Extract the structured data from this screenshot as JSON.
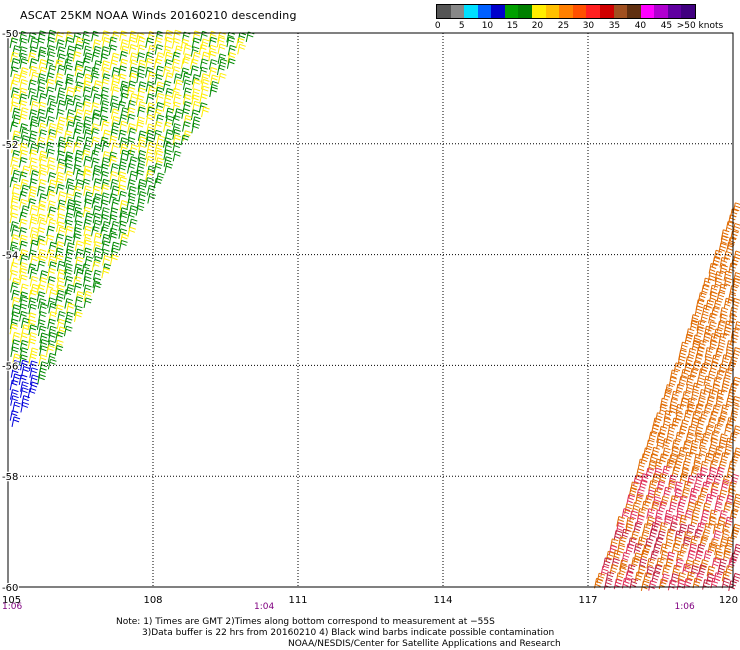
{
  "title": "ASCAT 25KM NOAA Winds 20160210 descending",
  "legend": {
    "colors": [
      "#555555",
      "#888888",
      "#00e0ff",
      "#0060ff",
      "#0000cc",
      "#00a000",
      "#008000",
      "#ffee00",
      "#ffc000",
      "#ff8000",
      "#ff5000",
      "#ff2020",
      "#d00000",
      "#a05020",
      "#603010",
      "#ff00ff",
      "#b000d0",
      "#6000a0",
      "#400080"
    ],
    "labels": [
      "0",
      "5",
      "10",
      "15",
      "20",
      "25",
      "30",
      "35",
      "40",
      "45",
      ">50 knots"
    ]
  },
  "map": {
    "lon_ticks": [
      "105",
      "108",
      "111",
      "114",
      "117",
      "120"
    ],
    "lat_ticks": [
      "-50",
      "-52",
      "-54",
      "-56",
      "-58",
      "-60"
    ],
    "time_labels": [
      {
        "text": "1:06",
        "lon": 105
      },
      {
        "text": "1:04",
        "lon": 110.3
      },
      {
        "text": "1:06",
        "lon": 119
      }
    ],
    "time_color": "#800080",
    "wind_speed_colors": {
      "blue": "#0000dd",
      "green": "#008a00",
      "yellow": "#ffee00",
      "orange": "#e06a00",
      "red": "#e0305a",
      "darkred": "#c02040"
    }
  },
  "notes": {
    "line1": "Note: 1) Times are GMT 2)Times along bottom correspond to measurement at −55S",
    "line2": "3)Data buffer is 22 hrs from 20160210 4) Black wind barbs indicate possible contamination",
    "line3": "NOAA/NESDIS/Center for Satellite Applications and Research"
  }
}
